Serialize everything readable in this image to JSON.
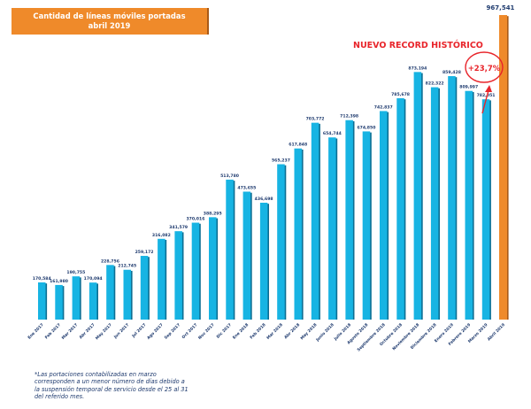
{
  "chart_data": {
    "type": "bar",
    "title": "Cantidad de líneas móviles portadas",
    "subtitle": "abril 2019",
    "xlabel": "",
    "ylabel": "",
    "grid": false,
    "legend": "none",
    "ylim": [
      0,
      1000000
    ],
    "categories": [
      "Ene 2017",
      "Feb 2017",
      "Mar 2017",
      "Abr 2017",
      "May 2017",
      "Jun 2017",
      "Jul 2017",
      "Ago 2017",
      "Sep 2017",
      "Oct 2017",
      "Nov 2017",
      "Dic 2017",
      "Ene 2018",
      "Feb 2018",
      "Mar 2018",
      "Abr 2018",
      "May 2018",
      "Junio 2018",
      "Julio 2018",
      "Agosto 2018",
      "Septiembre 2018",
      "Octubre 2018",
      "Noviembre 2018",
      "Diciembre 2018",
      "Enero 2019",
      "Febrero 2019",
      "Marzo 2019",
      "Abril 2019"
    ],
    "values": [
      170584,
      161980,
      190755,
      170094,
      228756,
      212745,
      259172,
      316082,
      341579,
      370016,
      388295,
      513780,
      473655,
      436698,
      565237,
      617848,
      703772,
      654744,
      712398,
      674850,
      742837,
      785678,
      873194,
      822322,
      859428,
      809997,
      782051,
      967541
    ],
    "value_labels": [
      "170,584",
      "161,980",
      "190,755",
      "170,094",
      "228,756",
      "212,745",
      "259,172",
      "316,082",
      "341,579",
      "370,016",
      "388,295",
      "513,780",
      "473,655",
      "436,698",
      "565,237",
      "617,848",
      "703,772",
      "654,744",
      "712,398",
      "674,850",
      "742,837",
      "785,678",
      "873,194",
      "822,322",
      "859,428",
      "809,997",
      "782,051",
      "967,541"
    ],
    "highlight_index": 27,
    "colors": {
      "bar": "#17b4e3",
      "bar_shadow": "#0d6f93",
      "highlight": "#ef8a2a",
      "highlight_shadow": "#a85a18",
      "annotation": "#e8242a",
      "label": "#1e3a6e"
    },
    "annotations": {
      "record_text": "NUEVO RECORD HISTÓRICO",
      "growth_text": "+23,7%"
    }
  },
  "footnote": [
    "*Las portaciones contabilizadas en marzo",
    "corresponden a un menor número de días debido a",
    "la suspensión temporal de servicio desde el 25 al 31",
    "del referido mes."
  ]
}
